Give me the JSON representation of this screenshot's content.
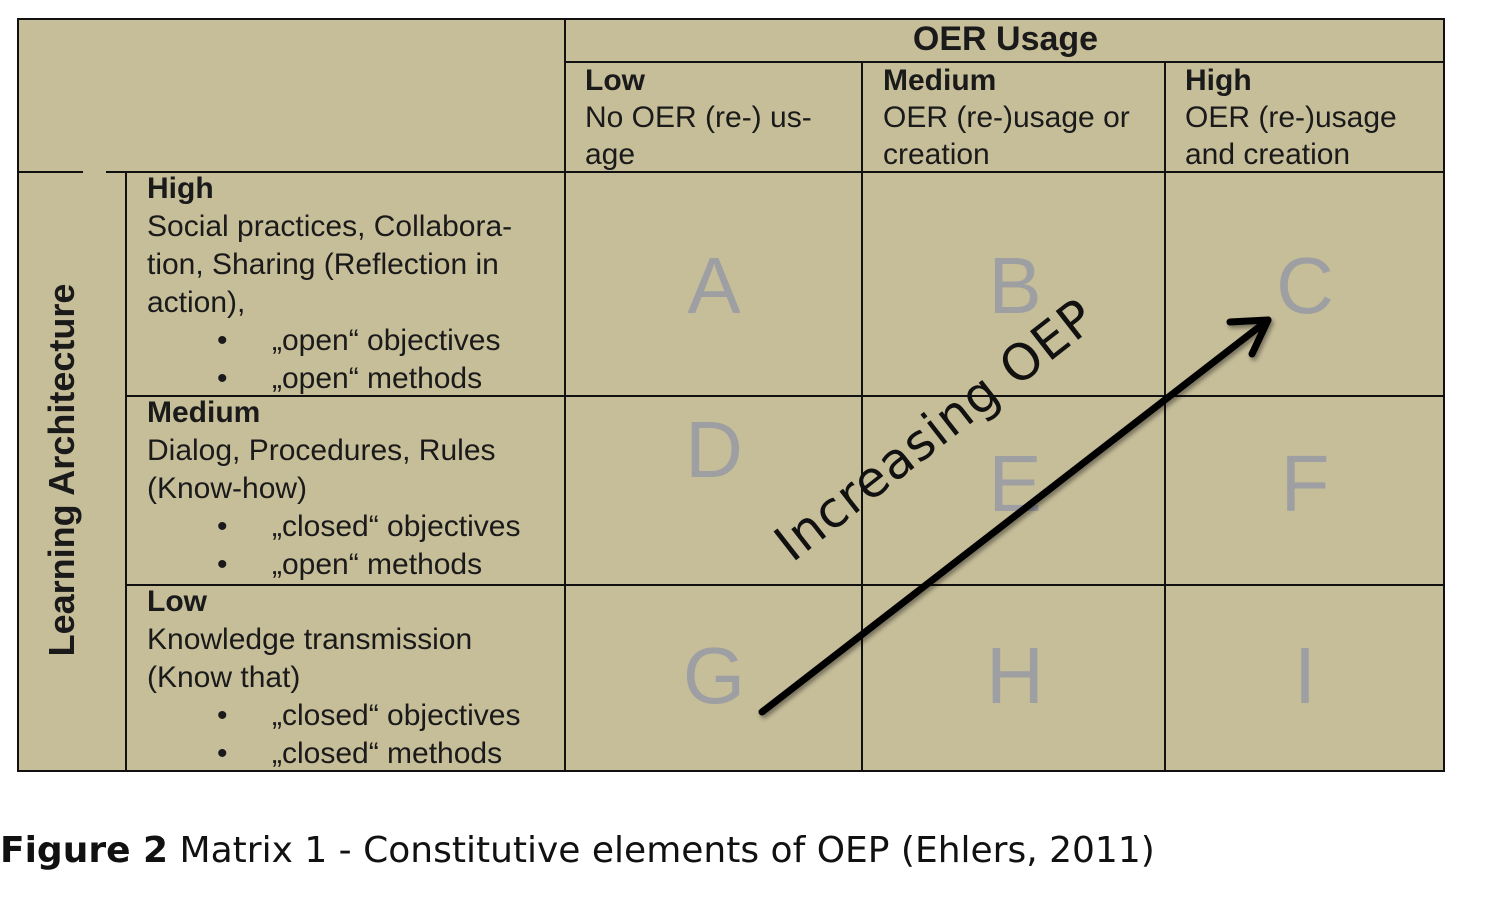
{
  "column_axis": {
    "title": "OER Usage",
    "levels": [
      {
        "level": "Low",
        "description": "No OER (re-) us-age"
      },
      {
        "level": "Medium",
        "description": "OER (re-)usage or creation"
      },
      {
        "level": "High",
        "description": "OER (re-)usage and creation"
      }
    ]
  },
  "row_axis": {
    "title": "Learning Architecture",
    "levels": [
      {
        "level": "High",
        "description": "Social practices, Collabora-tion, Sharing (Reflection in action),",
        "bullets": [
          "„open“ objectives",
          "„open“ methods"
        ]
      },
      {
        "level": "Medium",
        "description": "Dialog, Procedures, Rules (Know-how)",
        "bullets": [
          "„closed“ objectives",
          "„open“ methods"
        ]
      },
      {
        "level": "Low",
        "description": "Knowledge transmission (Know that)",
        "bullets": [
          "„closed“ objectives",
          "„closed“ methods"
        ]
      }
    ]
  },
  "cells": [
    [
      "A",
      "B",
      "C"
    ],
    [
      "D",
      "E",
      "F"
    ],
    [
      "G",
      "H",
      "I"
    ]
  ],
  "arrow_label": "Increasing OEP",
  "caption": {
    "label": "Figure 2",
    "text": " Matrix 1 - Constitutive elements of OEP (Ehlers, 2011)"
  },
  "colors": {
    "background": "#c6bd99",
    "cell_letters": "#9d9fa3",
    "lines": "#111111"
  }
}
